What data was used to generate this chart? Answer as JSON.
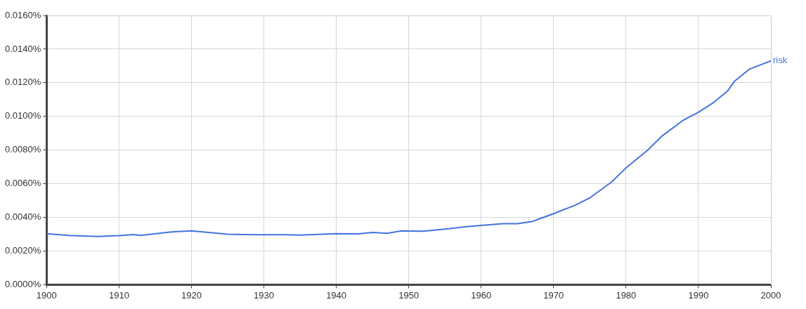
{
  "chart_data": {
    "type": "line",
    "x": [
      1900,
      1903,
      1905,
      1907,
      1910,
      1912,
      1913,
      1917,
      1920,
      1925,
      1927,
      1930,
      1933,
      1935,
      1940,
      1943,
      1945,
      1947,
      1949,
      1952,
      1955,
      1958,
      1960,
      1963,
      1965,
      1967,
      1970,
      1973,
      1975,
      1978,
      1980,
      1983,
      1985,
      1988,
      1990,
      1992,
      1994,
      1995,
      1997,
      2000
    ],
    "series": [
      {
        "name": "risk",
        "color": "#4374e0",
        "values": [
          0.00303,
          0.00293,
          0.0029,
          0.00287,
          0.00292,
          0.00298,
          0.00293,
          0.00313,
          0.0032,
          0.003,
          0.00298,
          0.00297,
          0.00297,
          0.00295,
          0.00303,
          0.00302,
          0.0031,
          0.00305,
          0.0032,
          0.00318,
          0.0033,
          0.00345,
          0.00352,
          0.00363,
          0.00363,
          0.00375,
          0.00422,
          0.00473,
          0.00516,
          0.0061,
          0.00694,
          0.008,
          0.00885,
          0.0098,
          0.01025,
          0.0108,
          0.0115,
          0.0121,
          0.0128,
          0.0133
        ]
      }
    ],
    "xlim": [
      1900,
      2000
    ],
    "xticks": [
      1900,
      1910,
      1920,
      1930,
      1940,
      1950,
      1960,
      1970,
      1980,
      1990,
      2000
    ],
    "ylim": [
      0,
      0.016
    ],
    "yticks": [
      {
        "value": 0,
        "label": "0.0000%"
      },
      {
        "value": 0.002,
        "label": "0.0020%"
      },
      {
        "value": 0.004,
        "label": "0.0040%"
      },
      {
        "value": 0.006,
        "label": "0.0060%"
      },
      {
        "value": 0.008,
        "label": "0.0080%"
      },
      {
        "value": 0.01,
        "label": "0.0100%"
      },
      {
        "value": 0.012,
        "label": "0.0120%"
      },
      {
        "value": 0.014,
        "label": "0.0140%"
      },
      {
        "value": 0.016,
        "label": "0.0160%"
      }
    ],
    "grid": true,
    "legend": false,
    "marker": "none",
    "line_style": "solid"
  }
}
